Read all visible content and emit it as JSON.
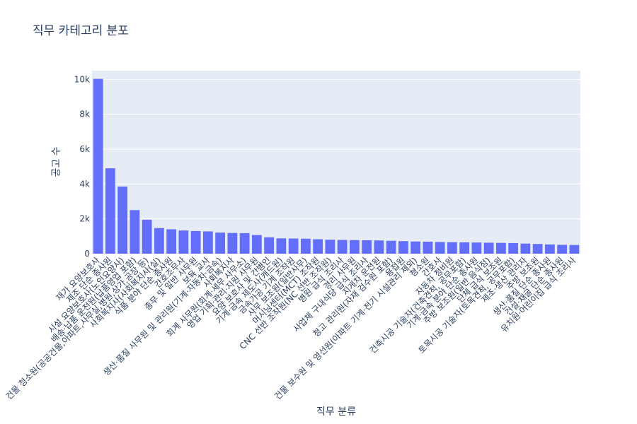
{
  "chart_data": {
    "type": "bar",
    "title": "직무 카테고리 분포",
    "xlabel": "직무 분류",
    "ylabel": "공고 수",
    "ylim": [
      0,
      10500
    ],
    "yticks": [
      0,
      2000,
      4000,
      6000,
      8000,
      10000
    ],
    "ytick_labels": [
      "0",
      "2k",
      "4k",
      "6k",
      "8k",
      "10k"
    ],
    "grid": true,
    "bar_color": "#636efa",
    "plot_bg": "#e5ecf6",
    "categories": [
      "재가 요양보호사",
      "제조 단순 종사원",
      "시설 요양보호사(노인요양사)",
      "배송·납품 운전원(납품영업 포함)",
      "건물 청소원(공공건물,아파트,사무실,병원,상가,공장 등)",
      "사회복지사(사회복지사(실)",
      "식품 분야 단순 종사원",
      "간호조무사",
      "총무 및 일반 사무원",
      "보육 교사",
      "생산·품질 사무원 및 관리원(기계·자동차·금속)",
      "사회복지사",
      "회계 사무원(회계·세무 사무소)",
      "영업 기획·관리·지원 사무원",
      "요양 보호사 및 간병인",
      "기계·금속 제도사(캐드원)",
      "금속가공 기계 조작원",
      "사무 보조원(일반사무)",
      "머시닝센터(MCT) 조작원",
      "CNC 선반 조작원(NC 선반 조작원)",
      "병원 급식 조리사",
      "경리 사무원",
      "사업체 구내식당 급식 조리사",
      "지게차 운전원",
      "청고 관리원(자재 검수원 포함)",
      "용접원",
      "건물 보수원 및 영선원(아파트 기계·전기 시설관리 제외)",
      "청소원",
      "간호사",
      "자동차 정비원",
      "건축시공 기술자(건축견적, 공무포함)",
      "기계·금속 분야 단순 종사원",
      "주방 보조원(일반 음식점)",
      "단체 급식 보조원",
      "토목시공 기술자(토목견적, 공무포함)",
      "제조·생산 관리자",
      "주방 보조원",
      "생산·품질 단순 종사원",
      "건설·채굴 단순 종사원",
      "유치원·어린이집 급식 조리사"
    ],
    "values": [
      10030,
      4900,
      3850,
      2500,
      1950,
      1470,
      1400,
      1330,
      1300,
      1280,
      1210,
      1190,
      1180,
      1070,
      940,
      880,
      870,
      860,
      830,
      800,
      790,
      780,
      770,
      760,
      740,
      720,
      700,
      690,
      670,
      660,
      650,
      640,
      630,
      620,
      610,
      580,
      560,
      530,
      510,
      500
    ]
  }
}
